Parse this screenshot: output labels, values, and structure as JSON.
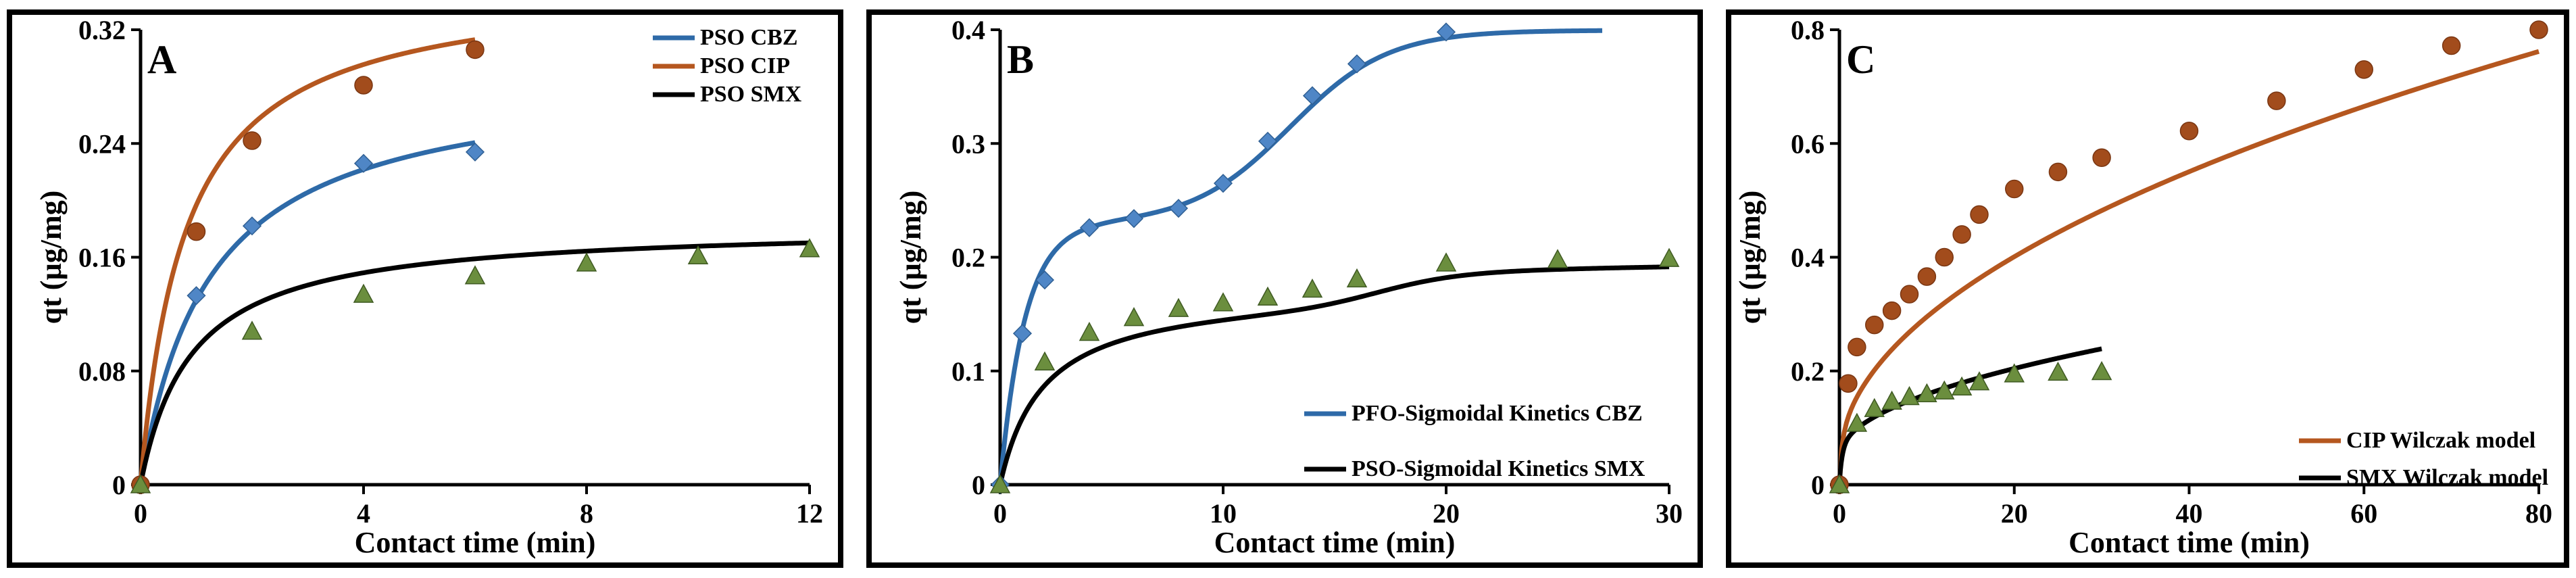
{
  "colors": {
    "cbz": "#2e6aa8",
    "cip": "#b5571f",
    "smx": "#000000",
    "marker_green": "#6b8e3e",
    "marker_brown": "#a24c1c",
    "marker_blue": "#4f86c6"
  },
  "chart_data": [
    {
      "type": "line",
      "panel_label": "A",
      "xlabel": "Contact time (min)",
      "ylabel": "qt (µg/mg)",
      "xlim": [
        0,
        12
      ],
      "ylim": [
        0,
        0.32
      ],
      "x_ticks": [
        0,
        4,
        8,
        12
      ],
      "y_ticks": [
        0,
        0.08,
        0.16,
        0.24,
        0.32
      ],
      "x_tick_labels": [
        "0",
        "4",
        "8",
        "12"
      ],
      "y_tick_labels": [
        "0",
        "0.08",
        "0.16",
        "0.24",
        "0.32"
      ],
      "legend": [
        "PSO CBZ",
        "PSO CIP",
        "PSO SMX"
      ],
      "series": [
        {
          "name": "PSO CBZ",
          "color": "#2e6aa8",
          "marker": "diamond",
          "marker_color": "#4f86c6",
          "points": [
            [
              0,
              0
            ],
            [
              1,
              0.133
            ],
            [
              2,
              0.182
            ],
            [
              4,
              0.226
            ],
            [
              6,
              0.234
            ]
          ],
          "model": {
            "kind": "pso",
            "qe": 0.29,
            "k": 2.8,
            "xmax": 6
          }
        },
        {
          "name": "PSO CIP",
          "color": "#b5571f",
          "marker": "circle",
          "marker_color": "#a24c1c",
          "points": [
            [
              0,
              0
            ],
            [
              1,
              0.178
            ],
            [
              2,
              0.242
            ],
            [
              4,
              0.281
            ],
            [
              6,
              0.306
            ]
          ],
          "model": {
            "kind": "pso",
            "qe": 0.355,
            "k": 3.5,
            "xmax": 6
          }
        },
        {
          "name": "PSO SMX",
          "color": "#000000",
          "marker": "triangle",
          "marker_color": "#6b8e3e",
          "points": [
            [
              0,
              0
            ],
            [
              2,
              0.108
            ],
            [
              4,
              0.134
            ],
            [
              6,
              0.147
            ],
            [
              8,
              0.156
            ],
            [
              10,
              0.161
            ],
            [
              12,
              0.166
            ]
          ],
          "model": {
            "kind": "pso",
            "qe": 0.183,
            "k": 6.0,
            "xmax": 12
          }
        }
      ]
    },
    {
      "type": "line",
      "panel_label": "B",
      "xlabel": "Contact time (min)",
      "ylabel": "qt (µg/mg)",
      "xlim": [
        0,
        30
      ],
      "ylim": [
        0,
        0.4
      ],
      "x_ticks": [
        0,
        10,
        20,
        30
      ],
      "y_ticks": [
        0,
        0.1,
        0.2,
        0.3,
        0.4
      ],
      "x_tick_labels": [
        "0",
        "10",
        "20",
        "30"
      ],
      "y_tick_labels": [
        "0",
        "0.1",
        "0.2",
        "0.3",
        "0.4"
      ],
      "legend": [
        "PFO-Sigmoidal Kinetics CBZ",
        "PSO-Sigmoidal Kinetics SMX"
      ],
      "series": [
        {
          "name": "PFO-Sigmoidal Kinetics CBZ",
          "color": "#2e6aa8",
          "marker": "diamond",
          "marker_color": "#4f86c6",
          "points": [
            [
              0,
              0
            ],
            [
              1,
              0.133
            ],
            [
              2,
              0.18
            ],
            [
              4,
              0.226
            ],
            [
              6,
              0.234
            ],
            [
              8,
              0.243
            ],
            [
              10,
              0.265
            ],
            [
              12,
              0.302
            ],
            [
              14,
              0.342
            ],
            [
              16,
              0.37
            ],
            [
              20,
              0.398
            ]
          ],
          "model": {
            "kind": "pfo_sigmoid",
            "a": 0.23,
            "k": 0.9,
            "b": 0.17,
            "t0": 13,
            "s": 2.2,
            "xmax": 27
          }
        },
        {
          "name": "PSO-Sigmoidal Kinetics SMX",
          "color": "#000000",
          "marker": "triangle",
          "marker_color": "#6b8e3e",
          "points": [
            [
              0,
              0
            ],
            [
              2,
              0.108
            ],
            [
              4,
              0.134
            ],
            [
              6,
              0.147
            ],
            [
              8,
              0.155
            ],
            [
              10,
              0.16
            ],
            [
              12,
              0.165
            ],
            [
              14,
              0.172
            ],
            [
              16,
              0.181
            ],
            [
              20,
              0.195
            ],
            [
              25,
              0.198
            ],
            [
              30,
              0.199
            ]
          ],
          "model": {
            "kind": "pso_sigmoid",
            "a": 0.172,
            "k": 3.0,
            "b": 0.03,
            "t0": 17,
            "s": 1.8,
            "xmax": 30
          }
        }
      ]
    },
    {
      "type": "line",
      "panel_label": "C",
      "xlabel": "Contact time (min)",
      "ylabel": "qt (µg/mg)",
      "xlim": [
        0,
        80
      ],
      "ylim": [
        0,
        0.8
      ],
      "x_ticks": [
        0,
        20,
        40,
        60,
        80
      ],
      "y_ticks": [
        0,
        0.2,
        0.4,
        0.6,
        0.8
      ],
      "x_tick_labels": [
        "0",
        "20",
        "40",
        "60",
        "80"
      ],
      "y_tick_labels": [
        "0",
        "0.2",
        "0.4",
        "0.6",
        "0.8"
      ],
      "legend": [
        "CIP   Wilczak model",
        "SMX Wilczak model"
      ],
      "series": [
        {
          "name": "CIP   Wilczak model",
          "color": "#b5571f",
          "marker": "circle",
          "marker_color": "#a24c1c",
          "points": [
            [
              0,
              0
            ],
            [
              1,
              0.178
            ],
            [
              2,
              0.242
            ],
            [
              4,
              0.281
            ],
            [
              6,
              0.306
            ],
            [
              8,
              0.335
            ],
            [
              10,
              0.366
            ],
            [
              12,
              0.4
            ],
            [
              14,
              0.44
            ],
            [
              16,
              0.475
            ],
            [
              20,
              0.52
            ],
            [
              25,
              0.55
            ],
            [
              30,
              0.575
            ],
            [
              40,
              0.622
            ],
            [
              50,
              0.675
            ],
            [
              60,
              0.73
            ],
            [
              70,
              0.772
            ],
            [
              80,
              0.8
            ]
          ],
          "model": {
            "kind": "wilczak",
            "a": 0.04,
            "b": 0.0807,
            "p": 0.5,
            "xmax": 80
          }
        },
        {
          "name": "SMX Wilczak model",
          "color": "#000000",
          "marker": "triangle",
          "marker_color": "#6b8e3e",
          "points": [
            [
              0,
              0
            ],
            [
              2,
              0.108
            ],
            [
              4,
              0.134
            ],
            [
              6,
              0.147
            ],
            [
              8,
              0.155
            ],
            [
              10,
              0.16
            ],
            [
              12,
              0.165
            ],
            [
              14,
              0.172
            ],
            [
              16,
              0.181
            ],
            [
              20,
              0.195
            ],
            [
              25,
              0.198
            ],
            [
              30,
              0.199
            ]
          ],
          "model": {
            "kind": "wilczak",
            "a": 0.05,
            "b": 0.0345,
            "p": 0.5,
            "xmax": 30
          }
        }
      ]
    }
  ]
}
